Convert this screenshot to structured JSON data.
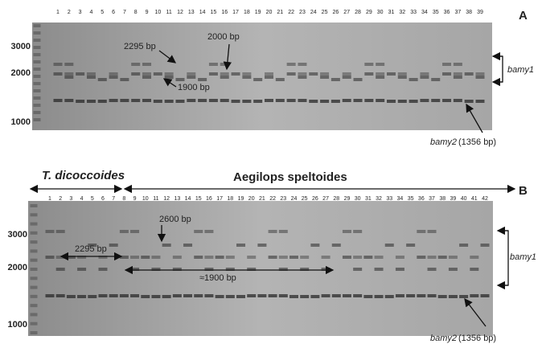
{
  "panel_a": {
    "label": "A",
    "lanes": [
      1,
      2,
      3,
      4,
      5,
      6,
      7,
      8,
      9,
      10,
      11,
      12,
      13,
      14,
      15,
      16,
      17,
      18,
      19,
      20,
      21,
      22,
      23,
      24,
      25,
      26,
      27,
      28,
      29,
      30,
      31,
      32,
      33,
      34,
      35,
      36,
      37,
      38,
      39
    ],
    "ladder": [
      3000,
      2000,
      1000
    ],
    "annotations": [
      "2295 bp",
      "2000 bp",
      "1900 bp"
    ],
    "bamy1": "bamy1",
    "bamy2": {
      "gene": "bamy2",
      "size": "(1356 bp)"
    }
  },
  "panel_b": {
    "label": "B",
    "groups": [
      "T. dicoccoides",
      "Aegilops speltoides"
    ],
    "lanes": [
      1,
      2,
      3,
      4,
      5,
      6,
      7,
      8,
      9,
      10,
      11,
      12,
      13,
      14,
      15,
      16,
      17,
      18,
      19,
      20,
      21,
      22,
      23,
      24,
      25,
      26,
      27,
      28,
      29,
      30,
      31,
      32,
      33,
      34,
      35,
      36,
      37,
      38,
      39,
      40,
      41,
      42
    ],
    "ladder": [
      3000,
      2000,
      1000
    ],
    "annotations": [
      "2600 bp",
      "2295 bp",
      "≈1900 bp"
    ],
    "bamy1": "bamy1",
    "bamy2": {
      "gene": "bamy2",
      "size": "(1356 bp)"
    }
  }
}
